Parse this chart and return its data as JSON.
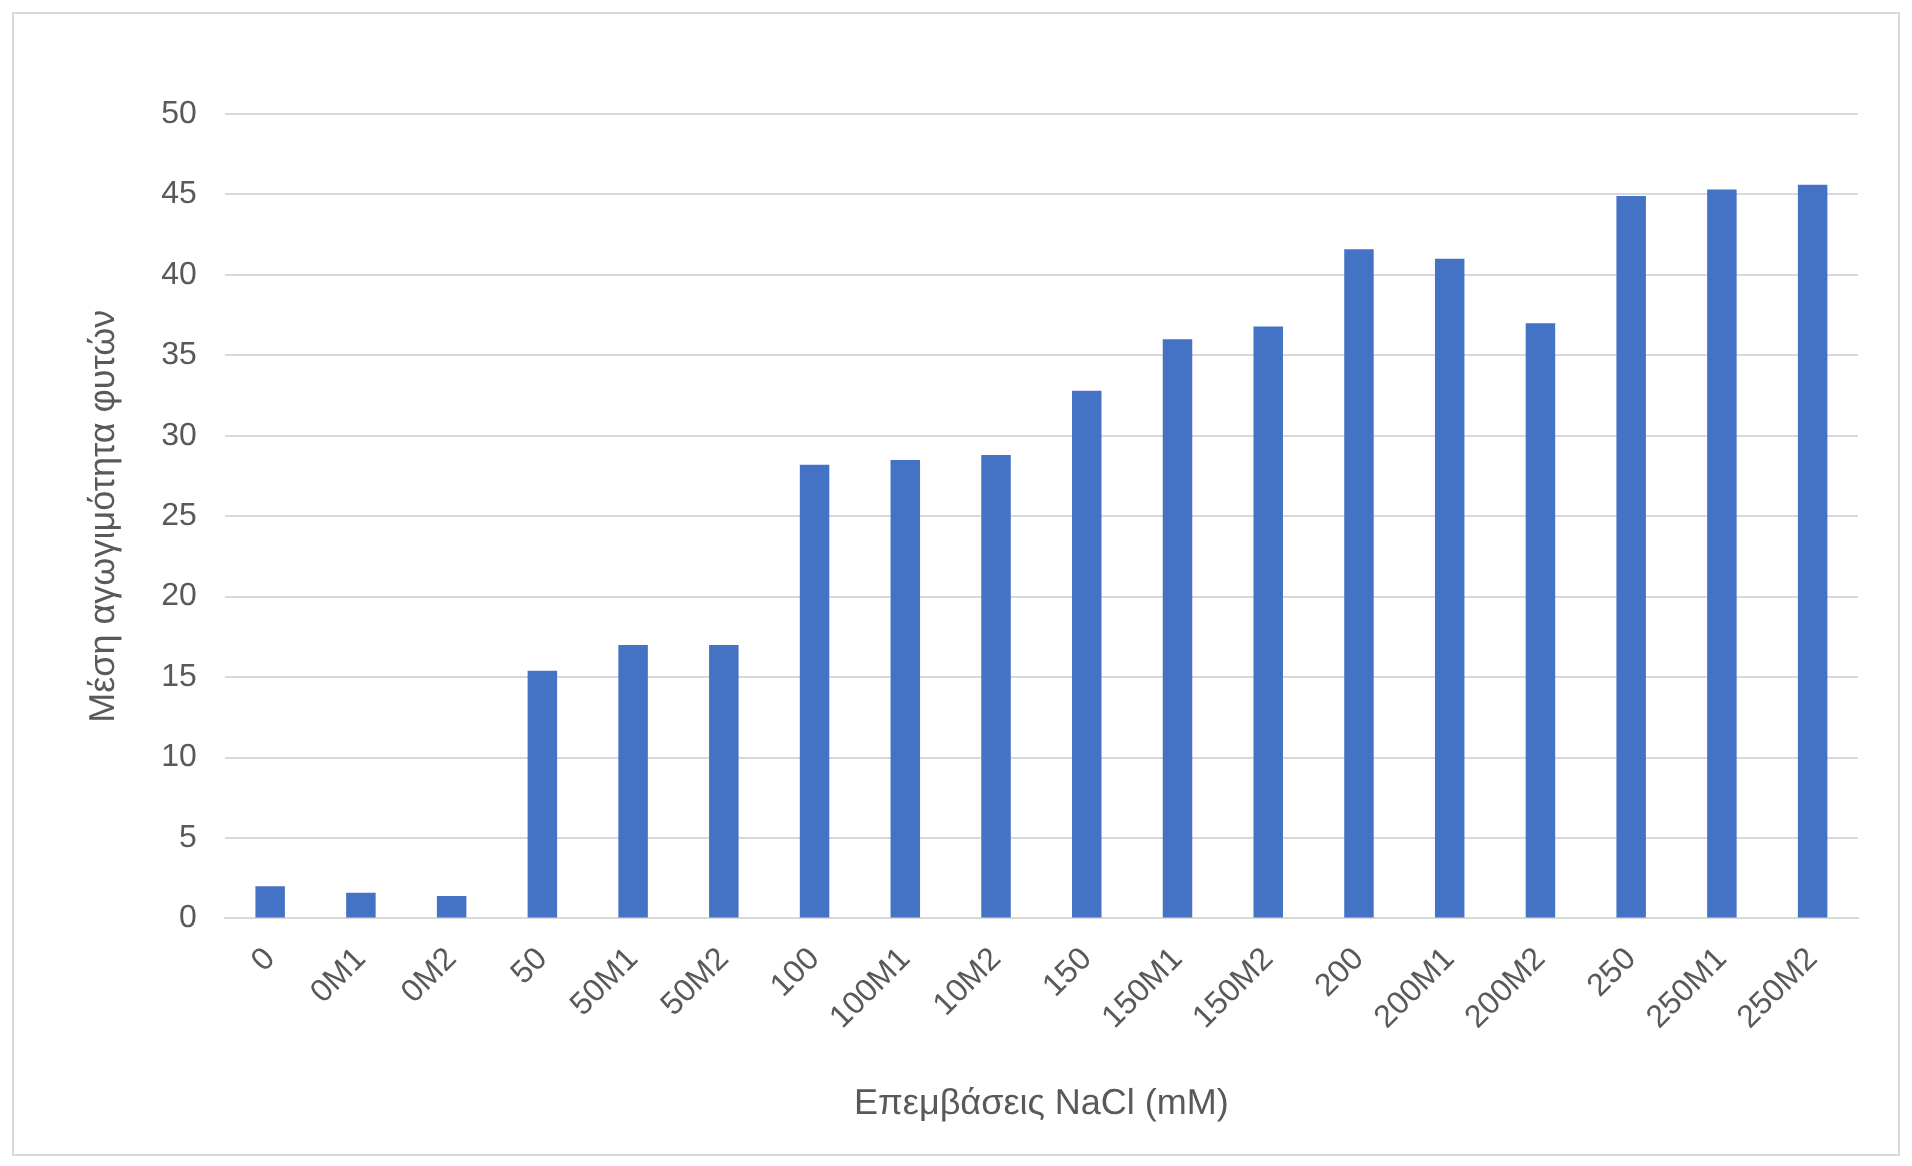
{
  "chart_data": {
    "type": "bar",
    "xlabel": "Επεμβάσεις NaCl (mM)",
    "ylabel": "Μέση αγωγιμότητα φυτών",
    "categories": [
      "0",
      "0M1",
      "0M2",
      "50",
      "50M1",
      "50M2",
      "100",
      "100M1",
      "10M2",
      "150",
      "150M1",
      "150M2",
      "200",
      "200M1",
      "200M2",
      "250",
      "250M1",
      "250M2"
    ],
    "values": [
      2.0,
      1.6,
      1.4,
      15.4,
      17.0,
      17.0,
      28.2,
      28.5,
      28.8,
      32.8,
      36.0,
      36.8,
      41.6,
      41.0,
      37.0,
      44.9,
      45.3,
      45.6
    ],
    "color": "#4472c4",
    "ylim": [
      0,
      50
    ],
    "yticks": [
      0,
      5,
      10,
      15,
      20,
      25,
      30,
      35,
      40,
      45,
      50
    ],
    "grid": "y",
    "legend": false
  }
}
